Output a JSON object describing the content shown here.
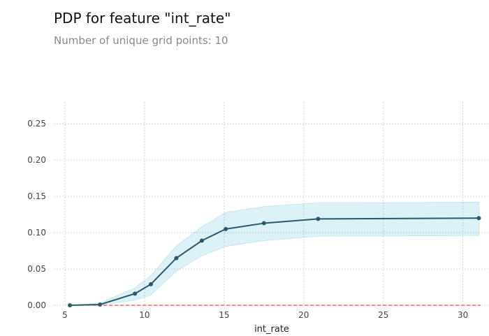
{
  "header": {
    "title": "PDP for feature \"int_rate\"",
    "subtitle": "Number of unique grid points: 10"
  },
  "chart_data": {
    "type": "line",
    "title": "PDP for feature \"int_rate\"",
    "subtitle": "Number of unique grid points: 10",
    "xlabel": "int_rate",
    "ylabel": "",
    "xlim": [
      4.3,
      31.2
    ],
    "ylim": [
      0.0,
      0.28
    ],
    "x_ticks": [
      5,
      10,
      15,
      20,
      25,
      30
    ],
    "x_tick_labels": [
      "5",
      "10",
      "15",
      "20",
      "25",
      "30"
    ],
    "y_ticks": [
      0.0,
      0.05,
      0.1,
      0.15,
      0.2,
      0.25
    ],
    "y_tick_labels": [
      "0.00",
      "0.05",
      "0.10",
      "0.15",
      "0.20",
      "0.25"
    ],
    "grid": true,
    "series": [
      {
        "x": [
          5.31,
          7.2,
          9.4,
          10.4,
          12.0,
          13.6,
          15.1,
          17.5,
          20.9,
          31.0
        ],
        "y": [
          0.0,
          0.001,
          0.016,
          0.029,
          0.065,
          0.089,
          0.105,
          0.113,
          0.119,
          0.12
        ],
        "y_lower": [
          0.0,
          0.0,
          0.007,
          0.014,
          0.047,
          0.068,
          0.081,
          0.089,
          0.095,
          0.096
        ],
        "y_upper": [
          0.0,
          0.003,
          0.024,
          0.041,
          0.082,
          0.108,
          0.128,
          0.136,
          0.141,
          0.142
        ],
        "color": "#2a5a6c",
        "band_color": "#66c2d7"
      }
    ],
    "reference_line": {
      "y": 0.0,
      "style": "dashed",
      "color": "#e0533c"
    }
  }
}
